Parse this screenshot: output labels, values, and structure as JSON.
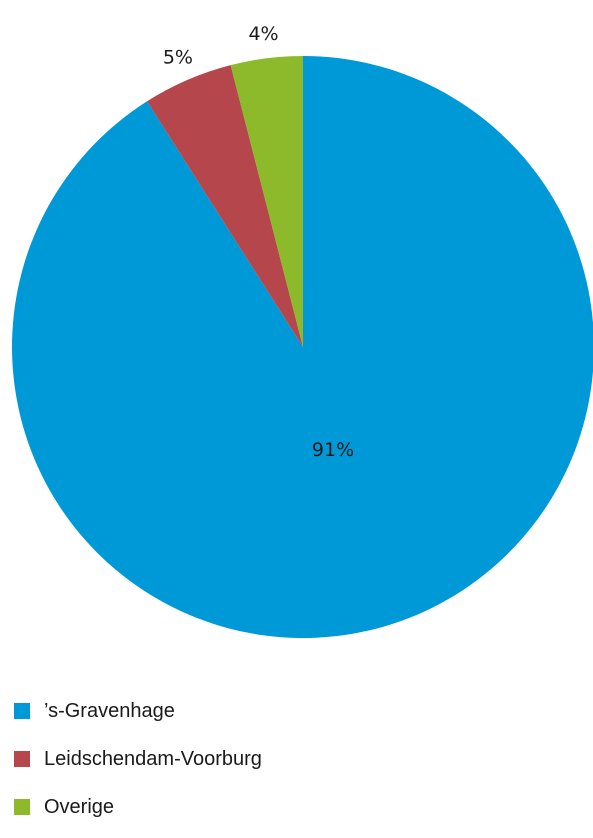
{
  "chart_data": {
    "type": "pie",
    "title": "",
    "categories": [
      "’s-Gravenhage",
      "Leidschendam-Voorburg",
      "Overige"
    ],
    "values": [
      91,
      5,
      4
    ],
    "labels": [
      "91%",
      "5%",
      "4%"
    ],
    "colors": [
      "#0099d8",
      "#b5464b",
      "#8dba2a"
    ],
    "legend_position": "bottom-left",
    "start_angle": "12 o'clock",
    "direction": "clockwise"
  }
}
